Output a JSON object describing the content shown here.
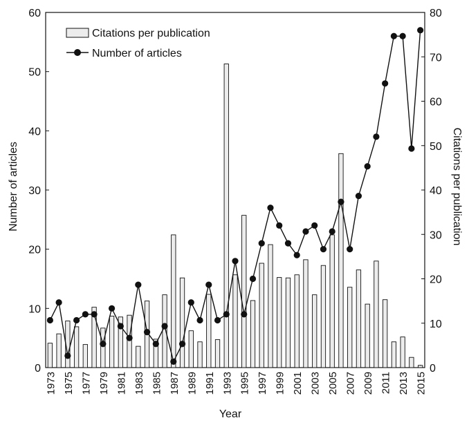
{
  "chart_data": {
    "type": "bar+line",
    "xlabel": "Year",
    "ylabel_left": "Number of articles",
    "ylabel_right": "Citations per publication",
    "ylim_left": [
      0,
      60
    ],
    "ylim_right": [
      0,
      80
    ],
    "yticks_left": [
      0,
      10,
      20,
      30,
      40,
      50,
      60
    ],
    "yticks_right": [
      0,
      10,
      20,
      30,
      40,
      50,
      60,
      70,
      80
    ],
    "xticks": [
      "1973",
      "1975",
      "1977",
      "1979",
      "1981",
      "1983",
      "1985",
      "1987",
      "1989",
      "1991",
      "1993",
      "1995",
      "1997",
      "1999",
      "2001",
      "2003",
      "2005",
      "2007",
      "2009",
      "2011",
      "2013",
      "2015"
    ],
    "years": [
      1973,
      1974,
      1975,
      1976,
      1977,
      1978,
      1979,
      1980,
      1981,
      1982,
      1983,
      1984,
      1985,
      1986,
      1987,
      1988,
      1989,
      1990,
      1991,
      1992,
      1993,
      1994,
      1995,
      1996,
      1997,
      1998,
      1999,
      2000,
      2001,
      2002,
      2003,
      2004,
      2005,
      2006,
      2007,
      2008,
      2009,
      2010,
      2011,
      2012,
      2013,
      2014,
      2015
    ],
    "legend": {
      "placement": "top-left",
      "bar_label": "Citations per publication",
      "line_label": "Number of articles"
    },
    "series": [
      {
        "name": "Citations per publication",
        "type": "bar",
        "axis": "right",
        "color": "#ececec",
        "values": [
          5.5,
          7.6,
          10.5,
          9.2,
          5.2,
          13.6,
          8.9,
          11.6,
          11.4,
          11.8,
          4.8,
          15.0,
          6.4,
          16.4,
          29.9,
          20.2,
          8.3,
          5.8,
          16.5,
          6.3,
          68.4,
          20.9,
          34.3,
          15.1,
          23.5,
          27.7,
          20.3,
          20.2,
          20.9,
          24.3,
          16.4,
          23.0,
          29.9,
          48.2,
          18.1,
          22.0,
          14.3,
          24.0,
          15.3,
          5.8,
          6.9,
          2.3,
          0.5
        ]
      },
      {
        "name": "Number of articles",
        "type": "line",
        "axis": "left",
        "color": "#111111",
        "values": [
          8,
          11,
          2,
          8,
          9,
          9,
          4,
          10,
          7,
          5,
          14,
          6,
          4,
          7,
          1,
          4,
          11,
          8,
          14,
          8,
          9,
          18,
          9,
          15,
          21,
          27,
          24,
          21,
          19,
          23,
          24,
          20,
          23,
          28,
          20,
          29,
          34,
          39,
          48,
          56,
          56,
          37,
          57
        ]
      }
    ]
  }
}
